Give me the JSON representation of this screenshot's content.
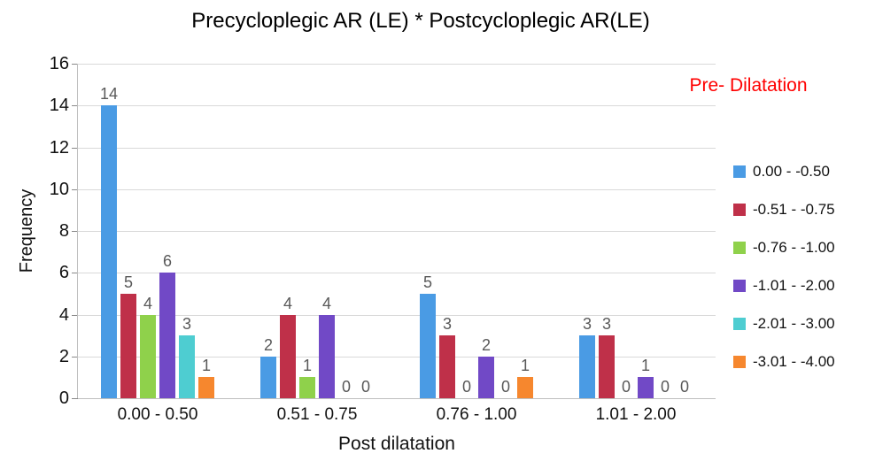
{
  "chart_data": {
    "type": "bar",
    "title": "Precycloplegic AR (LE) * Postcycloplegic AR(LE)",
    "xlabel": "Post dilatation",
    "ylabel": "Frequency",
    "legend_title": "Pre- Dilatation",
    "legend_title_color": "#ff0000",
    "legend_position": "right",
    "grid": true,
    "ylim": [
      0,
      16
    ],
    "ytick_step": 2,
    "yticks": [
      0,
      2,
      4,
      6,
      8,
      10,
      12,
      14,
      16
    ],
    "categories": [
      "0.00 - 0.50",
      "0.51 - 0.75",
      "0.76 - 1.00",
      "1.01 - 2.00"
    ],
    "series": [
      {
        "name": "0.00 - -0.50",
        "color": "#4a9be4",
        "values": [
          14,
          2,
          5,
          3
        ]
      },
      {
        "name": "-0.51 - -0.75",
        "color": "#bf3049",
        "values": [
          5,
          4,
          3,
          3
        ]
      },
      {
        "name": "-0.76 - -1.00",
        "color": "#8fd14b",
        "values": [
          4,
          1,
          0,
          0
        ]
      },
      {
        "name": "-1.01 - -2.00",
        "color": "#7149c6",
        "values": [
          6,
          4,
          2,
          1
        ]
      },
      {
        "name": "-2.01 - -3.00",
        "color": "#4ecdd1",
        "values": [
          3,
          0,
          0,
          0
        ]
      },
      {
        "name": "-3.01 - -4.00",
        "color": "#f6872e",
        "values": [
          1,
          0,
          1,
          0
        ]
      }
    ],
    "value_labels_shown": true
  }
}
